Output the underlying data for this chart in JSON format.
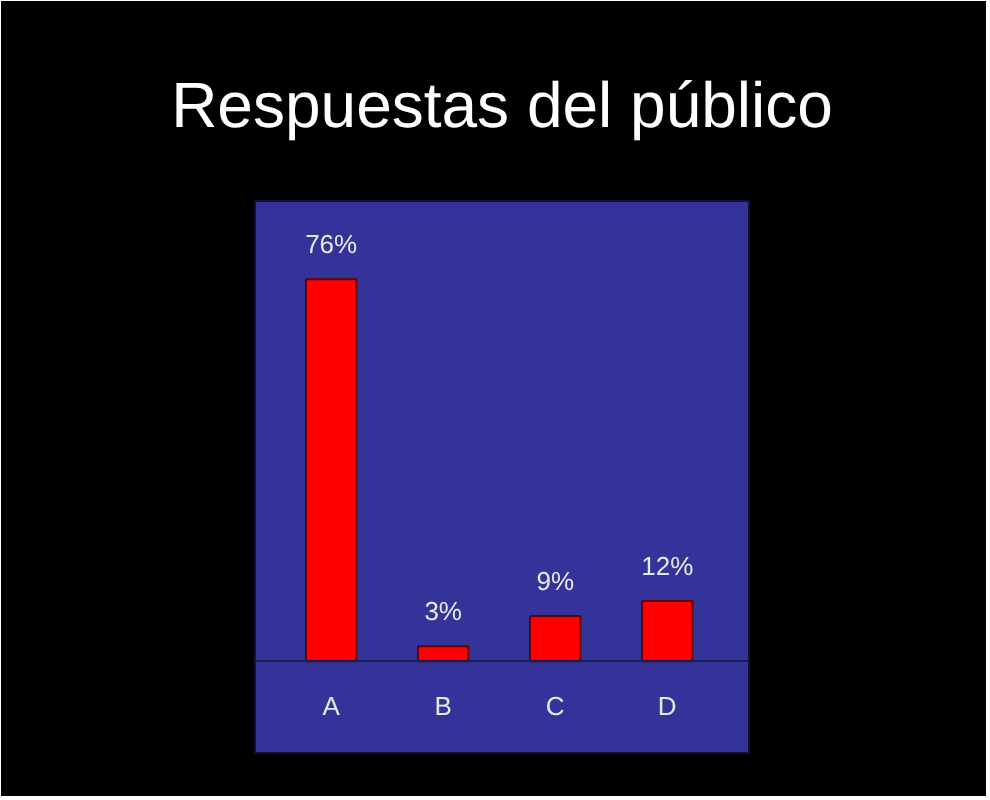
{
  "chart_data": {
    "type": "bar",
    "title": "Respuestas del público",
    "categories": [
      "A",
      "B",
      "C",
      "D"
    ],
    "values": [
      76,
      3,
      9,
      12
    ],
    "value_labels": [
      "76%",
      "3%",
      "9%",
      "12%"
    ],
    "color": "#ff0000"
  }
}
